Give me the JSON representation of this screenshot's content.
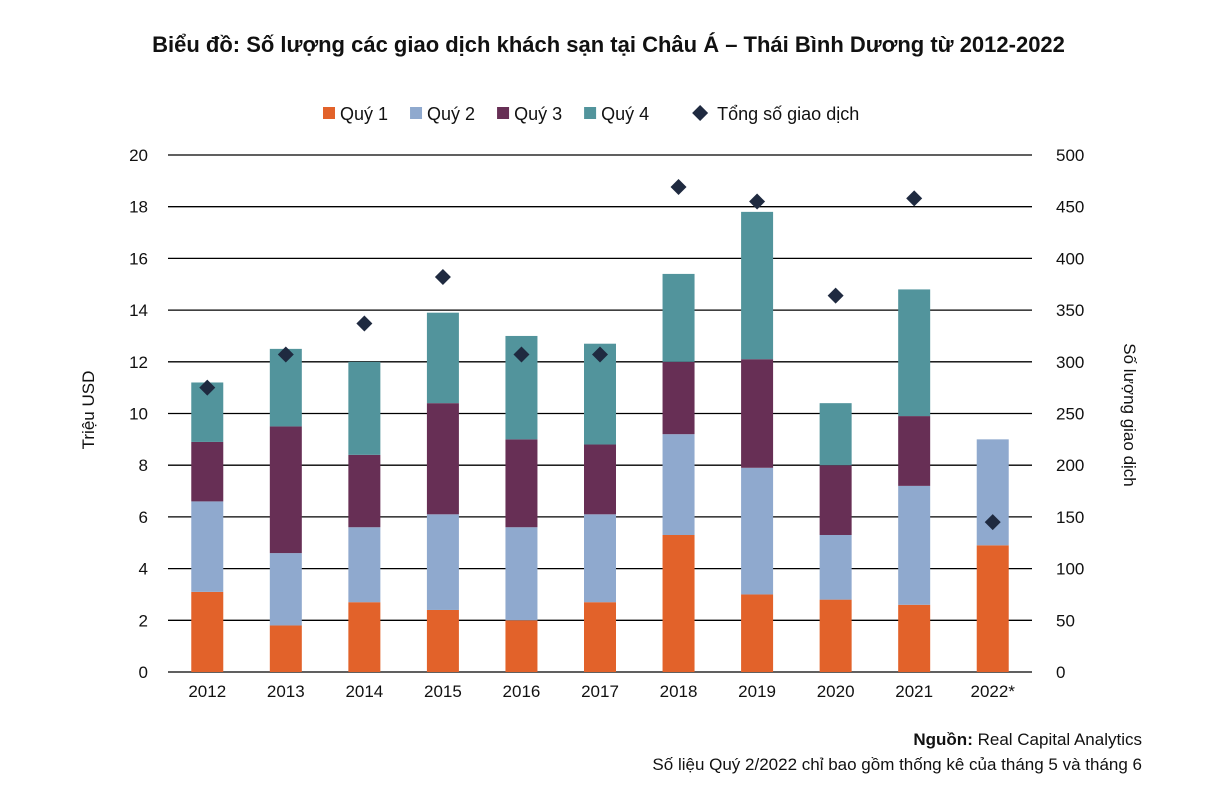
{
  "chart_data": {
    "type": "bar",
    "stacked": true,
    "title": "Biểu đồ: Số lượng các giao dịch khách sạn tại Châu Á – Thái Bình Dương từ 2012-2022",
    "categories": [
      "2012",
      "2013",
      "2014",
      "2015",
      "2016",
      "2017",
      "2018",
      "2019",
      "2020",
      "2021",
      "2022*"
    ],
    "series": [
      {
        "name": "Quý 1",
        "axis": "left",
        "color": "#E2622A",
        "values": [
          3.1,
          1.8,
          2.7,
          2.4,
          2.0,
          2.7,
          5.3,
          3.0,
          2.8,
          2.6,
          4.9
        ]
      },
      {
        "name": "Quý 2",
        "axis": "left",
        "color": "#8FA9CE",
        "values": [
          3.5,
          2.8,
          2.9,
          3.7,
          3.6,
          3.4,
          3.9,
          4.9,
          2.5,
          4.6,
          4.1
        ]
      },
      {
        "name": "Quý 3",
        "axis": "left",
        "color": "#672F55",
        "values": [
          2.3,
          4.9,
          2.8,
          4.3,
          3.4,
          2.7,
          2.8,
          4.2,
          2.7,
          2.7,
          0
        ]
      },
      {
        "name": "Quý 4",
        "axis": "left",
        "color": "#52949C",
        "values": [
          2.3,
          3.0,
          3.6,
          3.5,
          4.0,
          3.9,
          3.4,
          5.7,
          2.4,
          4.9,
          0
        ]
      },
      {
        "name": "Tổng số giao dịch",
        "axis": "right",
        "type": "scatter",
        "marker": "diamond",
        "color": "#1F2A40",
        "values": [
          275,
          307,
          337,
          382,
          307,
          307,
          469,
          455,
          364,
          458,
          145
        ]
      }
    ],
    "ylabel": "Triệu USD",
    "ylim": [
      0,
      20
    ],
    "yticks": [
      "0",
      "2",
      "4",
      "6",
      "8",
      "10",
      "12",
      "14",
      "16",
      "18",
      "20"
    ],
    "y2label": "Số lượng giao dịch",
    "y2lim": [
      0,
      500
    ],
    "y2ticks": [
      "0",
      "50",
      "100",
      "150",
      "200",
      "250",
      "300",
      "350",
      "400",
      "450",
      "500"
    ],
    "grid": true,
    "legend": "top"
  },
  "source_label": "Nguồn:",
  "source_text": " Real Capital Analytics",
  "note": "Số liệu Quý 2/2022 chỉ bao gồm thống kê của tháng 5 và tháng 6"
}
